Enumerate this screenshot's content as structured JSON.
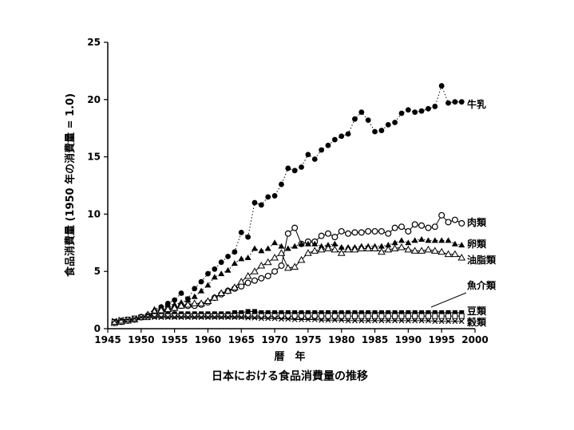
{
  "chart_data": {
    "type": "line",
    "title": "日本における食品消費量の推移",
    "xlabel": "暦　年",
    "ylabel": "食品消費量 (1950 年の消費量 = 1.0)",
    "xlim": [
      1945,
      2000
    ],
    "ylim": [
      0,
      25
    ],
    "xticks": [
      1945,
      1950,
      1955,
      1960,
      1965,
      1970,
      1975,
      1980,
      1985,
      1990,
      1995,
      2000
    ],
    "yticks": [
      0,
      5,
      10,
      15,
      20,
      25
    ],
    "grid": false,
    "series": [
      {
        "name": "牛乳",
        "marker": "filled-circle",
        "line": "dotted",
        "x": [
          1946,
          1947,
          1948,
          1949,
          1950,
          1951,
          1952,
          1953,
          1954,
          1955,
          1956,
          1957,
          1958,
          1959,
          1960,
          1961,
          1962,
          1963,
          1964,
          1965,
          1966,
          1967,
          1968,
          1969,
          1970,
          1971,
          1972,
          1973,
          1974,
          1975,
          1976,
          1977,
          1978,
          1979,
          1980,
          1981,
          1982,
          1983,
          1984,
          1985,
          1986,
          1987,
          1988,
          1989,
          1990,
          1991,
          1992,
          1993,
          1994,
          1995,
          1996,
          1997,
          1998
        ],
        "y": [
          0.5,
          0.6,
          0.7,
          0.8,
          1.0,
          1.2,
          1.5,
          1.9,
          2.2,
          2.5,
          3.1,
          2.6,
          3.5,
          4.1,
          4.8,
          5.2,
          5.8,
          6.3,
          6.7,
          8.4,
          8.0,
          11.0,
          10.8,
          11.5,
          11.6,
          12.6,
          14.0,
          13.8,
          14.1,
          15.2,
          14.8,
          15.6,
          16.0,
          16.5,
          16.8,
          17.0,
          18.3,
          18.9,
          18.2,
          17.2,
          17.3,
          17.8,
          18.0,
          18.8,
          19.1,
          18.9,
          19.0,
          19.2,
          19.4,
          21.2,
          19.7,
          19.8,
          19.8
        ]
      },
      {
        "name": "肉類",
        "marker": "open-circle",
        "line": "solid",
        "x": [
          1946,
          1947,
          1948,
          1949,
          1950,
          1951,
          1952,
          1953,
          1954,
          1955,
          1956,
          1957,
          1958,
          1959,
          1960,
          1961,
          1962,
          1963,
          1964,
          1965,
          1966,
          1967,
          1968,
          1969,
          1970,
          1971,
          1972,
          1973,
          1974,
          1975,
          1976,
          1977,
          1978,
          1979,
          1980,
          1981,
          1982,
          1983,
          1984,
          1985,
          1986,
          1987,
          1988,
          1989,
          1990,
          1991,
          1992,
          1993,
          1994,
          1995,
          1996,
          1997,
          1998
        ],
        "y": [
          0.5,
          0.6,
          0.7,
          0.8,
          1.0,
          1.1,
          1.3,
          1.5,
          1.7,
          1.8,
          2.0,
          2.0,
          2.0,
          2.1,
          2.3,
          2.7,
          3.0,
          3.3,
          3.5,
          3.7,
          4.0,
          4.2,
          4.4,
          4.6,
          5.0,
          5.5,
          8.3,
          8.8,
          7.4,
          7.6,
          7.6,
          8.1,
          8.3,
          8.0,
          8.5,
          8.3,
          8.4,
          8.4,
          8.5,
          8.5,
          8.5,
          8.3,
          8.8,
          8.9,
          8.5,
          9.1,
          9.0,
          8.8,
          8.9,
          9.9,
          9.3,
          9.5,
          9.2
        ]
      },
      {
        "name": "卵類",
        "marker": "filled-triangle",
        "line": "dotted",
        "x": [
          1946,
          1947,
          1948,
          1949,
          1950,
          1951,
          1952,
          1953,
          1954,
          1955,
          1956,
          1957,
          1958,
          1959,
          1960,
          1961,
          1962,
          1963,
          1964,
          1965,
          1966,
          1967,
          1968,
          1969,
          1970,
          1971,
          1972,
          1973,
          1974,
          1975,
          1976,
          1977,
          1978,
          1979,
          1980,
          1981,
          1982,
          1983,
          1984,
          1985,
          1986,
          1987,
          1988,
          1989,
          1990,
          1991,
          1992,
          1993,
          1994,
          1995,
          1996,
          1997,
          1998
        ],
        "y": [
          0.6,
          0.6,
          0.7,
          0.8,
          1.0,
          1.3,
          1.7,
          1.9,
          2.1,
          2.1,
          2.3,
          2.5,
          2.8,
          3.3,
          3.8,
          4.5,
          4.8,
          5.1,
          5.7,
          6.1,
          6.2,
          7.0,
          6.8,
          7.0,
          7.5,
          7.2,
          7.0,
          7.2,
          7.4,
          7.4,
          7.4,
          7.2,
          7.3,
          7.4,
          7.1,
          7.1,
          7.1,
          7.2,
          7.2,
          7.2,
          7.2,
          7.3,
          7.5,
          7.7,
          7.5,
          7.7,
          7.8,
          7.7,
          7.7,
          7.7,
          7.7,
          7.4,
          7.3
        ]
      },
      {
        "name": "油脂類",
        "marker": "open-triangle",
        "line": "solid",
        "x": [
          1946,
          1947,
          1948,
          1949,
          1950,
          1951,
          1952,
          1953,
          1954,
          1955,
          1956,
          1957,
          1958,
          1959,
          1960,
          1961,
          1962,
          1963,
          1964,
          1965,
          1966,
          1967,
          1968,
          1969,
          1970,
          1971,
          1972,
          1973,
          1974,
          1975,
          1976,
          1977,
          1978,
          1979,
          1980,
          1981,
          1982,
          1983,
          1984,
          1985,
          1986,
          1987,
          1988,
          1989,
          1990,
          1991,
          1992,
          1993,
          1994,
          1995,
          1996,
          1997,
          1998
        ],
        "y": [
          0.5,
          0.6,
          0.7,
          0.8,
          1.0,
          1.2,
          1.5,
          1.6,
          1.7,
          1.8,
          2.0,
          2.1,
          2.2,
          2.2,
          2.4,
          2.7,
          3.1,
          3.3,
          3.6,
          4.1,
          4.6,
          5.0,
          5.5,
          5.8,
          6.2,
          6.6,
          5.3,
          5.4,
          6.0,
          6.6,
          6.8,
          6.9,
          7.0,
          6.9,
          6.6,
          6.9,
          6.9,
          7.0,
          7.0,
          7.0,
          6.7,
          6.9,
          7.0,
          7.1,
          6.9,
          6.8,
          6.8,
          6.9,
          6.8,
          6.7,
          6.5,
          6.5,
          6.2
        ]
      },
      {
        "name": "魚介類",
        "marker": "filled-square",
        "line": "solid",
        "x": [
          1946,
          1947,
          1948,
          1949,
          1950,
          1951,
          1952,
          1953,
          1954,
          1955,
          1956,
          1957,
          1958,
          1959,
          1960,
          1961,
          1962,
          1963,
          1964,
          1965,
          1966,
          1967,
          1968,
          1969,
          1970,
          1971,
          1972,
          1973,
          1974,
          1975,
          1976,
          1977,
          1978,
          1979,
          1980,
          1981,
          1982,
          1983,
          1984,
          1985,
          1986,
          1987,
          1988,
          1989,
          1990,
          1991,
          1992,
          1993,
          1994,
          1995,
          1996,
          1997,
          1998
        ],
        "y": [
          0.6,
          0.7,
          0.8,
          0.9,
          1.0,
          1.1,
          1.2,
          1.2,
          1.3,
          1.3,
          1.3,
          1.3,
          1.3,
          1.3,
          1.3,
          1.3,
          1.3,
          1.3,
          1.4,
          1.4,
          1.5,
          1.5,
          1.4,
          1.4,
          1.4,
          1.4,
          1.4,
          1.4,
          1.4,
          1.4,
          1.4,
          1.4,
          1.4,
          1.4,
          1.4,
          1.4,
          1.4,
          1.4,
          1.4,
          1.4,
          1.4,
          1.4,
          1.4,
          1.4,
          1.4,
          1.4,
          1.4,
          1.4,
          1.4,
          1.4,
          1.4,
          1.4,
          1.4
        ]
      },
      {
        "name": "豆類",
        "marker": "open-square",
        "line": "solid",
        "x": [
          1946,
          1947,
          1948,
          1949,
          1950,
          1951,
          1952,
          1953,
          1954,
          1955,
          1956,
          1957,
          1958,
          1959,
          1960,
          1961,
          1962,
          1963,
          1964,
          1965,
          1966,
          1967,
          1968,
          1969,
          1970,
          1971,
          1972,
          1973,
          1974,
          1975,
          1976,
          1977,
          1978,
          1979,
          1980,
          1981,
          1982,
          1983,
          1984,
          1985,
          1986,
          1987,
          1988,
          1989,
          1990,
          1991,
          1992,
          1993,
          1994,
          1995,
          1996,
          1997,
          1998
        ],
        "y": [
          0.6,
          0.7,
          0.8,
          0.9,
          1.0,
          1.0,
          1.1,
          1.1,
          1.1,
          1.1,
          1.1,
          1.1,
          1.1,
          1.1,
          1.1,
          1.1,
          1.1,
          1.1,
          1.1,
          1.1,
          1.1,
          1.1,
          1.1,
          1.1,
          1.1,
          1.1,
          1.1,
          1.1,
          1.1,
          1.1,
          1.1,
          1.1,
          1.1,
          1.1,
          1.1,
          1.1,
          1.1,
          1.1,
          1.1,
          1.1,
          1.1,
          1.1,
          1.1,
          1.1,
          1.1,
          1.1,
          1.1,
          1.1,
          1.1,
          1.1,
          1.1,
          1.1,
          1.1
        ]
      },
      {
        "name": "穀類",
        "marker": "cross",
        "line": "solid",
        "x": [
          1946,
          1947,
          1948,
          1949,
          1950,
          1951,
          1952,
          1953,
          1954,
          1955,
          1956,
          1957,
          1958,
          1959,
          1960,
          1961,
          1962,
          1963,
          1964,
          1965,
          1966,
          1967,
          1968,
          1969,
          1970,
          1971,
          1972,
          1973,
          1974,
          1975,
          1976,
          1977,
          1978,
          1979,
          1980,
          1981,
          1982,
          1983,
          1984,
          1985,
          1986,
          1987,
          1988,
          1989,
          1990,
          1991,
          1992,
          1993,
          1994,
          1995,
          1996,
          1997,
          1998
        ],
        "y": [
          0.7,
          0.8,
          0.8,
          0.9,
          1.0,
          1.0,
          1.0,
          1.0,
          1.0,
          1.0,
          1.0,
          1.0,
          1.0,
          1.0,
          1.0,
          1.0,
          1.0,
          1.0,
          1.0,
          1.0,
          0.95,
          0.95,
          0.9,
          0.9,
          0.9,
          0.85,
          0.85,
          0.8,
          0.8,
          0.8,
          0.8,
          0.75,
          0.75,
          0.75,
          0.75,
          0.7,
          0.7,
          0.7,
          0.7,
          0.7,
          0.7,
          0.7,
          0.7,
          0.7,
          0.7,
          0.7,
          0.7,
          0.7,
          0.65,
          0.65,
          0.65,
          0.65,
          0.65
        ]
      }
    ],
    "series_labels": [
      "牛乳",
      "肉類",
      "卵類",
      "油脂類",
      "魚介類",
      "豆類",
      "穀類"
    ]
  }
}
